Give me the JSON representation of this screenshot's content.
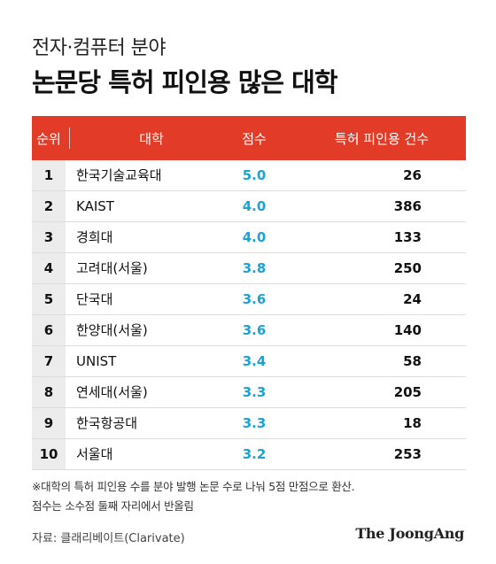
{
  "header": {
    "subtitle": "전자·컴퓨터 분야",
    "title": "논문당 특허 피인용 많은 대학"
  },
  "table": {
    "columns": [
      "순위",
      "대학",
      "점수",
      "특허 피인용 건수"
    ],
    "rows": [
      {
        "rank": "1",
        "university": "한국기술교육대",
        "score": "5.0",
        "citations": "26"
      },
      {
        "rank": "2",
        "university": "KAIST",
        "score": "4.0",
        "citations": "386"
      },
      {
        "rank": "3",
        "university": "경희대",
        "score": "4.0",
        "citations": "133"
      },
      {
        "rank": "4",
        "university": "고려대(서울)",
        "score": "3.8",
        "citations": "250"
      },
      {
        "rank": "5",
        "university": "단국대",
        "score": "3.6",
        "citations": "24"
      },
      {
        "rank": "6",
        "university": "한양대(서울)",
        "score": "3.6",
        "citations": "140"
      },
      {
        "rank": "7",
        "university": "UNIST",
        "score": "3.4",
        "citations": "58"
      },
      {
        "rank": "8",
        "university": "연세대(서울)",
        "score": "3.3",
        "citations": "205"
      },
      {
        "rank": "9",
        "university": "한국항공대",
        "score": "3.3",
        "citations": "18"
      },
      {
        "rank": "10",
        "university": "서울대",
        "score": "3.2",
        "citations": "253"
      }
    ]
  },
  "footnote": {
    "line1": "※대학의 특허 피인용 수를 분야 발행 논문 수로 나눠 5점 만점으로 환산.",
    "line2": "점수는 소수점 둘째 자리에서 반올림"
  },
  "source": "자료: 클래리베이트(Clarivate)",
  "logo": "The JoongAng",
  "colors": {
    "header_bg": "#e23b27",
    "score_text": "#1aa3d6",
    "rank_bg": "#ececec"
  }
}
